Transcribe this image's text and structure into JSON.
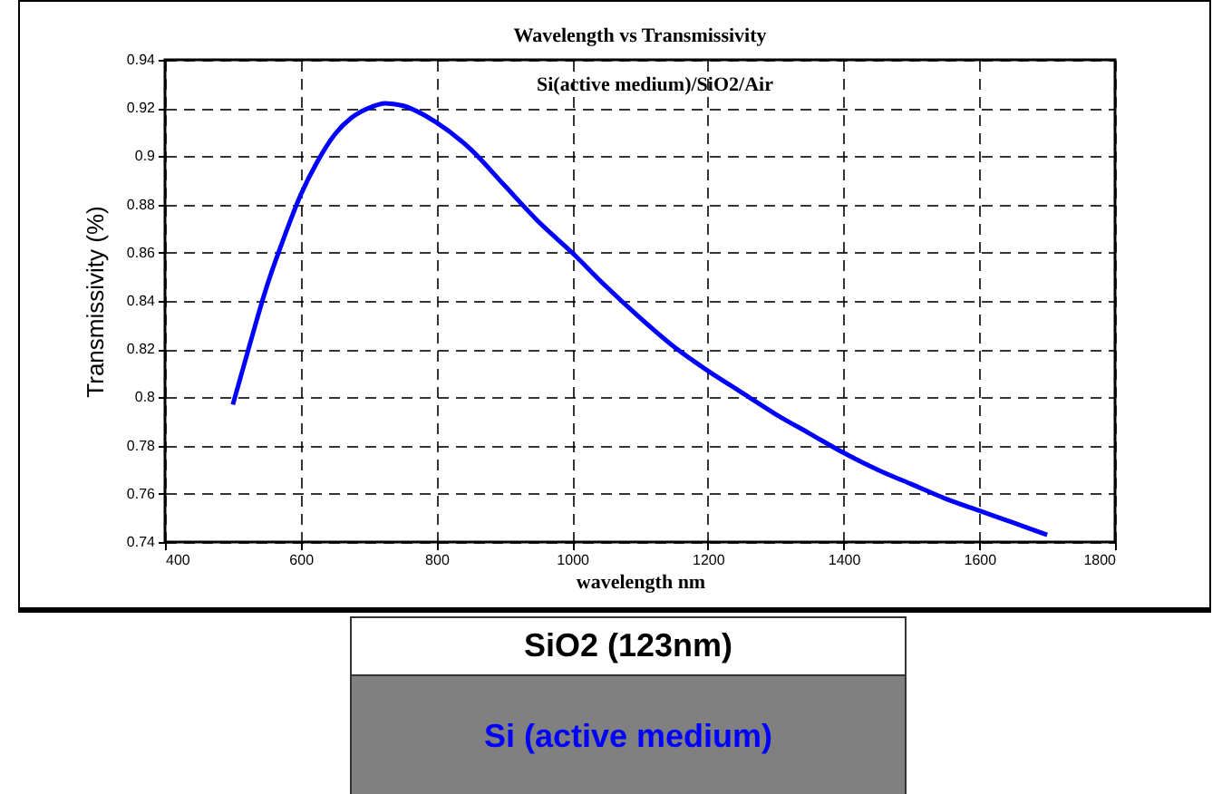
{
  "chart_data": {
    "type": "line",
    "title": "Wavelength vs Transmissivity",
    "xlabel": "wavelength nm",
    "ylabel": "Transmissivity (%)",
    "annotations": [
      "Si(active medium)/SiO2/Air",
      "SiO2 (123nm)",
      "Si (active medium)"
    ],
    "x": [
      500,
      525,
      550,
      575,
      600,
      625,
      650,
      675,
      700,
      725,
      750,
      800,
      850,
      900,
      950,
      1000,
      1050,
      1100,
      1150,
      1200,
      1250,
      1300,
      1350,
      1400,
      1450,
      1500,
      1550,
      1600,
      1650,
      1700
    ],
    "series": [
      {
        "color": "#0000ff",
        "values": [
          0.797,
          0.822,
          0.846,
          0.866,
          0.884,
          0.898,
          0.909,
          0.916,
          0.92,
          0.922,
          0.921,
          0.914,
          0.903,
          0.888,
          0.873,
          0.86,
          0.846,
          0.833,
          0.821,
          0.811,
          0.802,
          0.793,
          0.785,
          0.777,
          0.77,
          0.764,
          0.758,
          0.753,
          0.748,
          0.743
        ]
      }
    ],
    "xlim": [
      400,
      1800
    ],
    "xticks": [
      400,
      600,
      800,
      1000,
      1200,
      1400,
      1600,
      1800
    ],
    "ylim": [
      0.74,
      0.94
    ],
    "yticks": [
      0.74,
      0.76,
      0.78,
      0.8,
      0.82,
      0.84,
      0.86,
      0.88,
      0.9,
      0.92,
      0.94
    ],
    "grid": true,
    "marker": "none",
    "line_style": "solid"
  }
}
